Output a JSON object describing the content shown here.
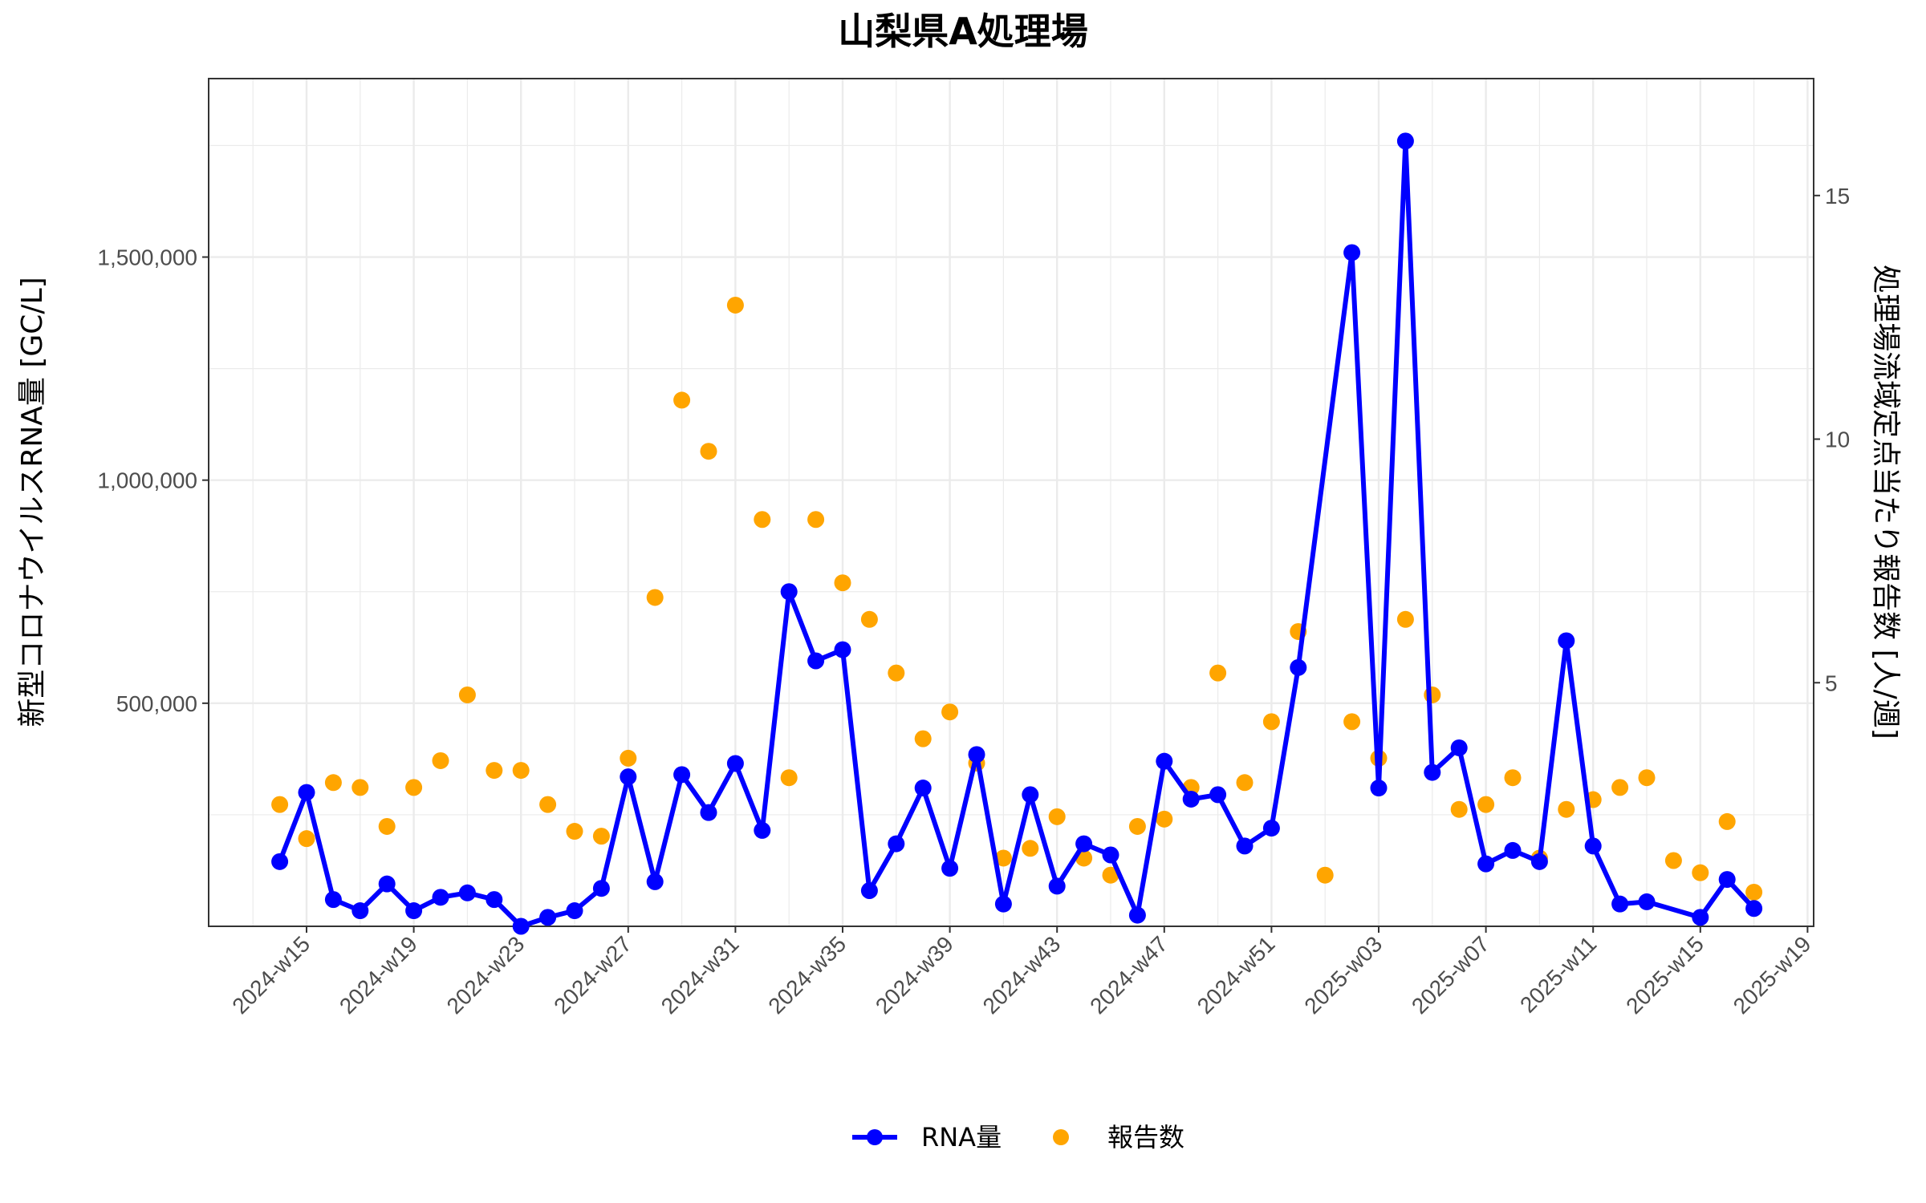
{
  "chart_data": {
    "type": "line",
    "title": "山梨県A処理場",
    "ylabel": "新型コロナウイルスRNA量 [GC/L]",
    "y2label": "処理場流域定点当たり報告数 [人/週]",
    "xlabel": "",
    "ylim": [
      0,
      1900000
    ],
    "y2lim": [
      0,
      17.4
    ],
    "yticks": [
      500000,
      1000000,
      1500000
    ],
    "ytick_labels": [
      "500,000",
      "1,000,000",
      "1,500,000"
    ],
    "y2ticks": [
      5,
      10,
      15
    ],
    "y2tick_labels": [
      "5",
      "10",
      "15"
    ],
    "xticks": [
      "2024-w15",
      "2024-w19",
      "2024-w23",
      "2024-w27",
      "2024-w31",
      "2024-w35",
      "2024-w39",
      "2024-w43",
      "2024-w47",
      "2024-w51",
      "2025-w03",
      "2025-w07",
      "2025-w11",
      "2025-w15",
      "2025-w19"
    ],
    "grid": true,
    "legend_position": "bottom",
    "colors": {
      "rna": "#0000ff",
      "reports": "#ffa500",
      "grid": "#ebebeb",
      "frame": "#333333"
    },
    "series": [
      {
        "name": "RNA量",
        "kind": "line-points",
        "x": [
          "2024-w14",
          "2024-w15",
          "2024-w16",
          "2024-w17",
          "2024-w18",
          "2024-w19",
          "2024-w20",
          "2024-w21",
          "2024-w22",
          "2024-w23",
          "2024-w24",
          "2024-w25",
          "2024-w26",
          "2024-w27",
          "2024-w28",
          "2024-w29",
          "2024-w30",
          "2024-w31",
          "2024-w32",
          "2024-w33",
          "2024-w34",
          "2024-w35",
          "2024-w36",
          "2024-w37",
          "2024-w38",
          "2024-w39",
          "2024-w40",
          "2024-w41",
          "2024-w42",
          "2024-w43",
          "2024-w44",
          "2024-w45",
          "2024-w46",
          "2024-w47",
          "2024-w48",
          "2024-w49",
          "2024-w50",
          "2024-w51",
          "2024-w52",
          "2025-w02",
          "2025-w03",
          "2025-w04",
          "2025-w05",
          "2025-w06",
          "2025-w07",
          "2025-w08",
          "2025-w09",
          "2025-w10",
          "2025-w11",
          "2025-w12",
          "2025-w13",
          "2025-w15",
          "2025-w16",
          "2025-w17"
        ],
        "values": [
          145000,
          300000,
          60000,
          35000,
          95000,
          35000,
          65000,
          75000,
          60000,
          0,
          20000,
          35000,
          85000,
          335000,
          100000,
          340000,
          255000,
          365000,
          215000,
          750000,
          595000,
          620000,
          80000,
          185000,
          310000,
          130000,
          385000,
          50000,
          295000,
          90000,
          185000,
          160000,
          25000,
          370000,
          285000,
          295000,
          180000,
          220000,
          580000,
          1510000,
          310000,
          1760000,
          345000,
          400000,
          140000,
          170000,
          145000,
          640000,
          180000,
          50000,
          55000,
          20000,
          105000,
          40000
        ]
      },
      {
        "name": "報告数",
        "kind": "points",
        "x": [
          "2024-w14",
          "2024-w15",
          "2024-w16",
          "2024-w17",
          "2024-w18",
          "2024-w19",
          "2024-w20",
          "2024-w21",
          "2024-w22",
          "2024-w23",
          "2024-w24",
          "2024-w25",
          "2024-w26",
          "2024-w27",
          "2024-w28",
          "2024-w29",
          "2024-w30",
          "2024-w31",
          "2024-w32",
          "2024-w33",
          "2024-w34",
          "2024-w35",
          "2024-w36",
          "2024-w37",
          "2024-w38",
          "2024-w39",
          "2024-w40",
          "2024-w41",
          "2024-w42",
          "2024-w43",
          "2024-w44",
          "2024-w45",
          "2024-w46",
          "2024-w47",
          "2024-w48",
          "2024-w49",
          "2024-w50",
          "2024-w51",
          "2024-w52",
          "2025-w01",
          "2025-w02",
          "2025-w03",
          "2025-w04",
          "2025-w05",
          "2025-w06",
          "2025-w07",
          "2025-w08",
          "2025-w09",
          "2025-w10",
          "2025-w11",
          "2025-w12",
          "2025-w13",
          "2025-w14",
          "2025-w15",
          "2025-w16",
          "2025-w17"
        ],
        "values": [
          2.5,
          1.8,
          2.95,
          2.85,
          2.05,
          2.85,
          3.4,
          4.75,
          3.2,
          3.2,
          2.5,
          1.95,
          1.85,
          3.45,
          6.75,
          10.8,
          9.75,
          12.75,
          8.35,
          3.05,
          8.35,
          7.05,
          6.3,
          5.2,
          3.85,
          4.4,
          3.35,
          1.4,
          1.6,
          2.25,
          1.4,
          1.05,
          2.05,
          2.2,
          2.85,
          5.2,
          2.95,
          4.2,
          6.05,
          1.05,
          4.2,
          3.45,
          6.3,
          4.75,
          2.4,
          2.5,
          3.05,
          1.4,
          2.4,
          2.6,
          2.85,
          3.05,
          1.35,
          1.1,
          2.15,
          0.7
        ]
      }
    ]
  }
}
